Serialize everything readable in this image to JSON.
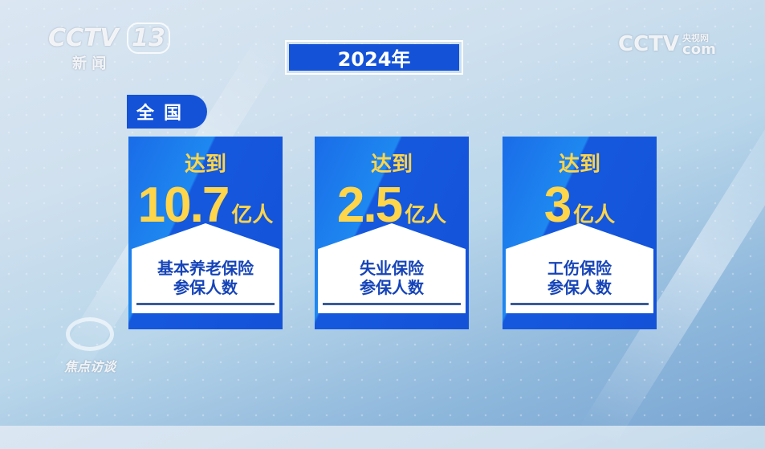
{
  "channel_logo": {
    "brand": "CCTV",
    "number": "13",
    "name": "新 闻"
  },
  "site_logo": {
    "brand": "CCTV",
    "sub": "央视网",
    "domain": "com"
  },
  "program_logo": {
    "name": "焦点访谈"
  },
  "title": "2024年",
  "region_tab": "全国",
  "cards": [
    {
      "prefix": "达到",
      "value": "10.7",
      "unit": "亿人",
      "label_line1": "基本养老保险",
      "label_line2": "参保人数"
    },
    {
      "prefix": "达到",
      "value": "2.5",
      "unit": "亿人",
      "label_line1": "失业保险",
      "label_line2": "参保人数"
    },
    {
      "prefix": "达到",
      "value": "3",
      "unit": "亿人",
      "label_line1": "工伤保险",
      "label_line2": "参保人数"
    }
  ],
  "colors": {
    "primary_blue": "#1452d8",
    "highlight_yellow": "#ffd54a",
    "label_blue": "#1644b8"
  }
}
